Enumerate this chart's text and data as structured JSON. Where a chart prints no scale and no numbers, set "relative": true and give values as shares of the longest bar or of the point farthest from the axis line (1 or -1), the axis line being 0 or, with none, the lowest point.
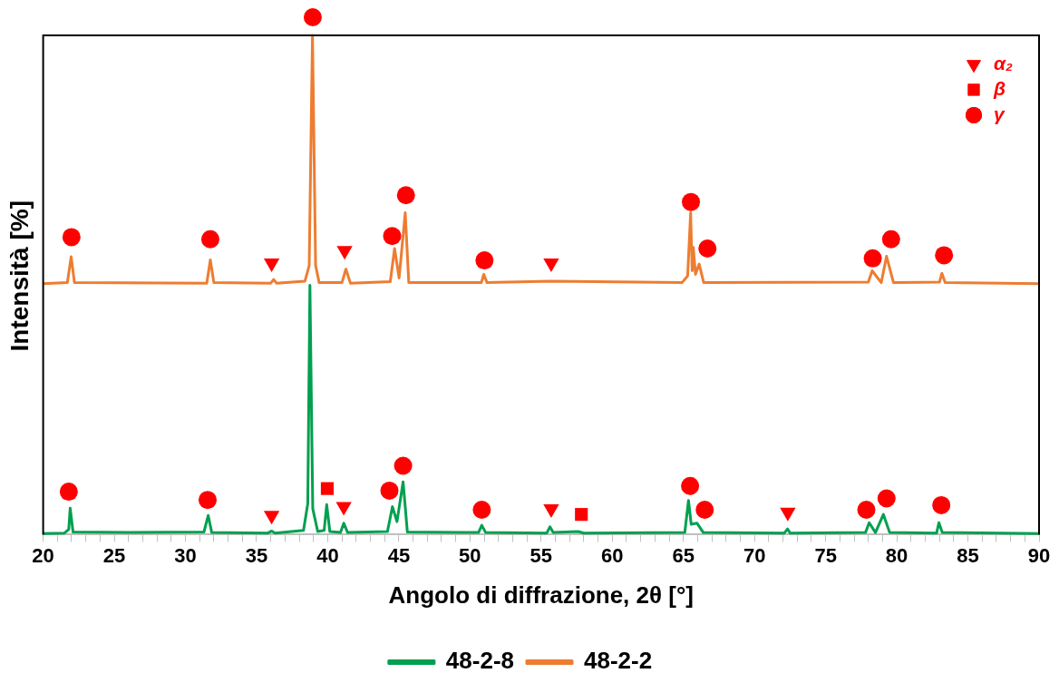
{
  "chart_data": {
    "type": "line",
    "xlabel": "Angolo di diffrazione, 2θ [°]",
    "ylabel": "Intensità [%]",
    "relative": true,
    "xlim": [
      20,
      90
    ],
    "xticks": [
      20,
      {
        "value": 21,
        "label": null
      },
      {
        "value": 22,
        "label": null
      },
      {
        "value": 23,
        "label": null
      },
      {
        "value": 24,
        "label": null
      },
      25,
      {
        "value": 26,
        "label": null
      },
      {
        "value": 27,
        "label": null
      },
      {
        "value": 28,
        "label": null
      },
      {
        "value": 29,
        "label": null
      },
      30,
      {
        "value": 31,
        "label": null
      },
      {
        "value": 32,
        "label": null
      },
      {
        "value": 33,
        "label": null
      },
      {
        "value": 34,
        "label": null
      },
      35,
      {
        "value": 36,
        "label": null
      },
      {
        "value": 37,
        "label": null
      },
      {
        "value": 38,
        "label": null
      },
      {
        "value": 39,
        "label": null
      },
      40,
      {
        "value": 41,
        "label": null
      },
      {
        "value": 42,
        "label": null
      },
      {
        "value": 43,
        "label": null
      },
      {
        "value": 44,
        "label": null
      },
      45,
      {
        "value": 46,
        "label": null
      },
      {
        "value": 47,
        "label": null
      },
      {
        "value": 48,
        "label": null
      },
      {
        "value": 49,
        "label": null
      },
      50,
      {
        "value": 51,
        "label": null
      },
      {
        "value": 52,
        "label": null
      },
      {
        "value": 53,
        "label": null
      },
      {
        "value": 54,
        "label": null
      },
      55,
      {
        "value": 56,
        "label": null
      },
      {
        "value": 57,
        "label": null
      },
      {
        "value": 58,
        "label": null
      },
      {
        "value": 59,
        "label": null
      },
      60,
      {
        "value": 61,
        "label": null
      },
      {
        "value": 62,
        "label": null
      },
      {
        "value": 63,
        "label": null
      },
      {
        "value": 64,
        "label": null
      },
      65,
      {
        "value": 66,
        "label": null
      },
      {
        "value": 67,
        "label": null
      },
      {
        "value": 68,
        "label": null
      },
      {
        "value": 69,
        "label": null
      },
      70,
      {
        "value": 71,
        "label": null
      },
      {
        "value": 72,
        "label": null
      },
      {
        "value": 73,
        "label": null
      },
      {
        "value": 74,
        "label": null
      },
      75,
      {
        "value": 76,
        "label": null
      },
      {
        "value": 77,
        "label": null
      },
      {
        "value": 78,
        "label": null
      },
      {
        "value": 79,
        "label": null
      },
      80,
      {
        "value": 81,
        "label": null
      },
      {
        "value": 82,
        "label": null
      },
      {
        "value": 83,
        "label": null
      },
      {
        "value": 84,
        "label": null
      },
      85,
      {
        "value": 86,
        "label": null
      },
      {
        "value": 87,
        "label": null
      },
      {
        "value": 88,
        "label": null
      },
      {
        "value": 89,
        "label": null
      },
      90
    ],
    "grid": false,
    "legend": "bottom",
    "marker": "none",
    "line_style": "solid",
    "series": [
      {
        "name": "48-2-8",
        "color": "#00a050",
        "x": [
          20,
          21.5,
          21.8,
          21.9,
          22.1,
          26,
          31.3,
          31.6,
          31.85,
          35.8,
          36.07,
          36.3,
          38.3,
          38.6,
          38.75,
          38.95,
          39.3,
          39.75,
          39.93,
          40.15,
          40.9,
          41.13,
          41.4,
          44.2,
          44.55,
          44.87,
          45.3,
          45.6,
          50.6,
          50.83,
          51.1,
          55.4,
          55.62,
          55.85,
          57.61,
          58,
          65.1,
          65.36,
          65.55,
          65.96,
          66.4,
          72.1,
          72.32,
          72.5,
          77.8,
          78.06,
          78.5,
          79.06,
          79.5,
          82.8,
          82.96,
          83.2,
          90
        ],
        "values": [
          0.002,
          0.003,
          0.01,
          0.051,
          0.005,
          0.004,
          0.005,
          0.037,
          0.004,
          0.003,
          0.007,
          0.003,
          0.008,
          0.06,
          0.482,
          0.05,
          0.006,
          0.008,
          0.058,
          0.006,
          0.004,
          0.022,
          0.004,
          0.006,
          0.054,
          0.025,
          0.102,
          0.005,
          0.004,
          0.018,
          0.004,
          0.003,
          0.015,
          0.004,
          0.006,
          0.003,
          0.004,
          0.066,
          0.02,
          0.022,
          0.004,
          0.003,
          0.011,
          0.003,
          0.004,
          0.023,
          0.004,
          0.039,
          0.004,
          0.003,
          0.023,
          0.004,
          0.002
        ]
      },
      {
        "name": "48-2-2",
        "color": "#ed7d31",
        "x": [
          20,
          21.7,
          21.97,
          22.2,
          31.5,
          31.75,
          32,
          36,
          36.2,
          36.4,
          38.4,
          38.7,
          38.93,
          39.15,
          39.4,
          41,
          41.28,
          41.6,
          44.4,
          44.7,
          45.02,
          45.45,
          45.7,
          50.8,
          50.97,
          51.2,
          55.66,
          64.9,
          65.3,
          65.51,
          65.62,
          65.7,
          65.85,
          66.11,
          66.43,
          78,
          78.27,
          78.91,
          79.28,
          79.77,
          83,
          83.17,
          83.4,
          90
        ],
        "values": [
          0.485,
          0.487,
          0.537,
          0.487,
          0.486,
          0.531,
          0.487,
          0.486,
          0.493,
          0.486,
          0.49,
          0.52,
          0.965,
          0.52,
          0.487,
          0.487,
          0.513,
          0.486,
          0.489,
          0.553,
          0.496,
          0.622,
          0.487,
          0.487,
          0.503,
          0.487,
          0.49,
          0.487,
          0.5,
          0.622,
          0.51,
          0.555,
          0.503,
          0.523,
          0.487,
          0.488,
          0.51,
          0.487,
          0.538,
          0.487,
          0.488,
          0.505,
          0.487,
          0.485
        ]
      },
      {
        "name": "α₂",
        "type": "scatter",
        "marker": "triangle",
        "color": "#ff0000",
        "x": [
          36.06,
          41.19,
          55.71,
          36.06,
          41.13,
          55.71,
          72.34
        ],
        "values": [
          0.525,
          0.549,
          0.525,
          0.037,
          0.054,
          0.05,
          0.043
        ]
      },
      {
        "name": "β",
        "type": "scatter",
        "marker": "square",
        "color": "#ff0000",
        "x": [
          39.97,
          57.83
        ],
        "values": [
          0.089,
          0.039
        ]
      },
      {
        "name": "γ",
        "type": "scatter",
        "marker": "circle",
        "color": "#ff0000",
        "x": [
          21.99,
          31.75,
          38.95,
          44.53,
          45.5,
          51.02,
          65.53,
          66.69,
          78.31,
          79.6,
          83.32,
          21.8,
          31.56,
          44.34,
          45.3,
          50.83,
          65.47,
          66.5,
          77.86,
          79.28,
          83.13
        ],
        "values": [
          0.575,
          0.571,
          1,
          0.577,
          0.656,
          0.53,
          0.643,
          0.553,
          0.534,
          0.571,
          0.54,
          0.083,
          0.067,
          0.085,
          0.133,
          0.048,
          0.094,
          0.048,
          0.048,
          0.07,
          0.057
        ]
      }
    ]
  }
}
